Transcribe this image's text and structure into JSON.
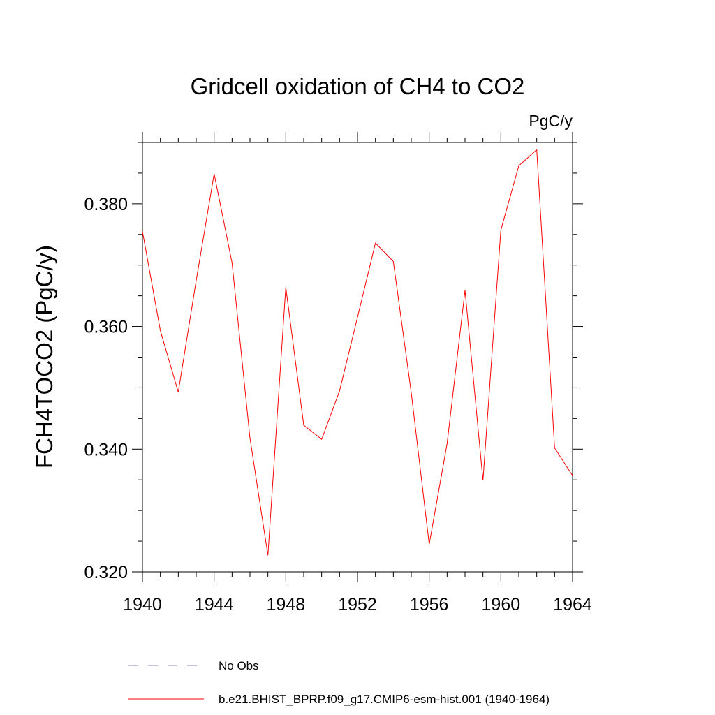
{
  "chart_data": {
    "type": "line",
    "title": "Gridcell oxidation of CH4 to CO2",
    "units": "PgC/y",
    "ylabel": "FCH4TOCO2  (PgC/y)",
    "xlabel": "",
    "xlim": [
      1940,
      1964
    ],
    "ylim": [
      0.32,
      0.39
    ],
    "x_ticks": [
      1940,
      1944,
      1948,
      1952,
      1956,
      1960,
      1964
    ],
    "x_tick_labels": [
      "1940",
      "1944",
      "1948",
      "1952",
      "1956",
      "1960",
      "1964"
    ],
    "y_ticks": [
      0.32,
      0.34,
      0.36,
      0.38
    ],
    "y_tick_labels": [
      "0.320",
      "0.340",
      "0.360",
      "0.380"
    ],
    "grid": false,
    "series": [
      {
        "name": "b.e21.BHIST_BPRP.f09_g17.CMIP6-esm-hist.001 (1940-1964)",
        "color": "#ff0000",
        "style": "solid",
        "x": [
          1940,
          1941,
          1942,
          1943,
          1944,
          1945,
          1946,
          1947,
          1948,
          1949,
          1950,
          1951,
          1952,
          1953,
          1954,
          1955,
          1956,
          1957,
          1958,
          1959,
          1960,
          1961,
          1962,
          1963,
          1964
        ],
        "values": [
          0.3755,
          0.3593,
          0.3493,
          0.3675,
          0.3849,
          0.3704,
          0.3418,
          0.3227,
          0.3664,
          0.3439,
          0.3416,
          0.3495,
          0.3615,
          0.3736,
          0.3706,
          0.3492,
          0.3245,
          0.3409,
          0.3659,
          0.3349,
          0.3757,
          0.3862,
          0.3888,
          0.3402,
          0.3357
        ]
      }
    ],
    "legend": [
      {
        "label": "No Obs",
        "color": "#8080c0",
        "style": "dashed"
      },
      {
        "label": "b.e21.BHIST_BPRP.f09_g17.CMIP6-esm-hist.001 (1940-1964)",
        "color": "#ff0000",
        "style": "solid"
      }
    ]
  }
}
